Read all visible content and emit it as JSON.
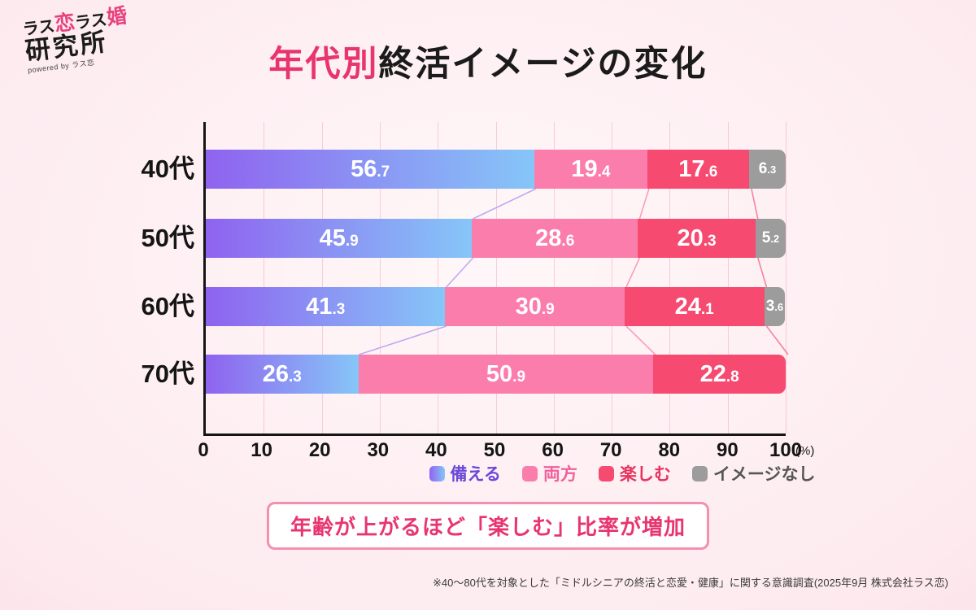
{
  "logo": {
    "seg1": "ラス",
    "seg2": "恋",
    "seg3": "ラス",
    "seg4": "婚",
    "line2": "研究所",
    "sub": "powered by ラス恋"
  },
  "title": {
    "highlight": "年代別",
    "rest": "終活イメージの変化"
  },
  "chart_data": {
    "type": "bar",
    "stacked": true,
    "orientation": "horizontal",
    "title": "年代別終活イメージの変化",
    "categories": [
      "40代",
      "50代",
      "60代",
      "70代"
    ],
    "series": [
      {
        "name": "備える",
        "values": [
          56.7,
          45.9,
          41.3,
          26.3
        ],
        "color": "#8f63ef",
        "color2": "#86c6f8",
        "legend_text_color": "#6a48d8"
      },
      {
        "name": "両方",
        "values": [
          19.4,
          28.6,
          30.9,
          50.9
        ],
        "color": "#fb7dab",
        "legend_text_color": "#f0609b"
      },
      {
        "name": "楽しむ",
        "values": [
          17.6,
          20.3,
          24.1,
          22.8
        ],
        "color": "#f64a70",
        "legend_text_color": "#e8325f"
      },
      {
        "name": "イメージなし",
        "values": [
          6.3,
          5.2,
          3.6,
          0
        ],
        "color": "#9c9c9c",
        "legend_text_color": "#555555"
      }
    ],
    "x_ticks": [
      0,
      10,
      20,
      30,
      40,
      50,
      60,
      70,
      80,
      90,
      100
    ],
    "x_unit": "(%)",
    "xlim": [
      0,
      100
    ],
    "grid": true,
    "legend_position": "bottom",
    "connector_colors": [
      "#b39bf5",
      "#fb8fb8",
      "#f76e90"
    ]
  },
  "callout": {
    "text": "年齢が上がるほど「楽しむ」比率が増加"
  },
  "footnote": "※40〜80代を対象とした「ミドルシニアの終活と恋愛・健康」に関する意識調査(2025年9月 株式会社ラス恋)"
}
